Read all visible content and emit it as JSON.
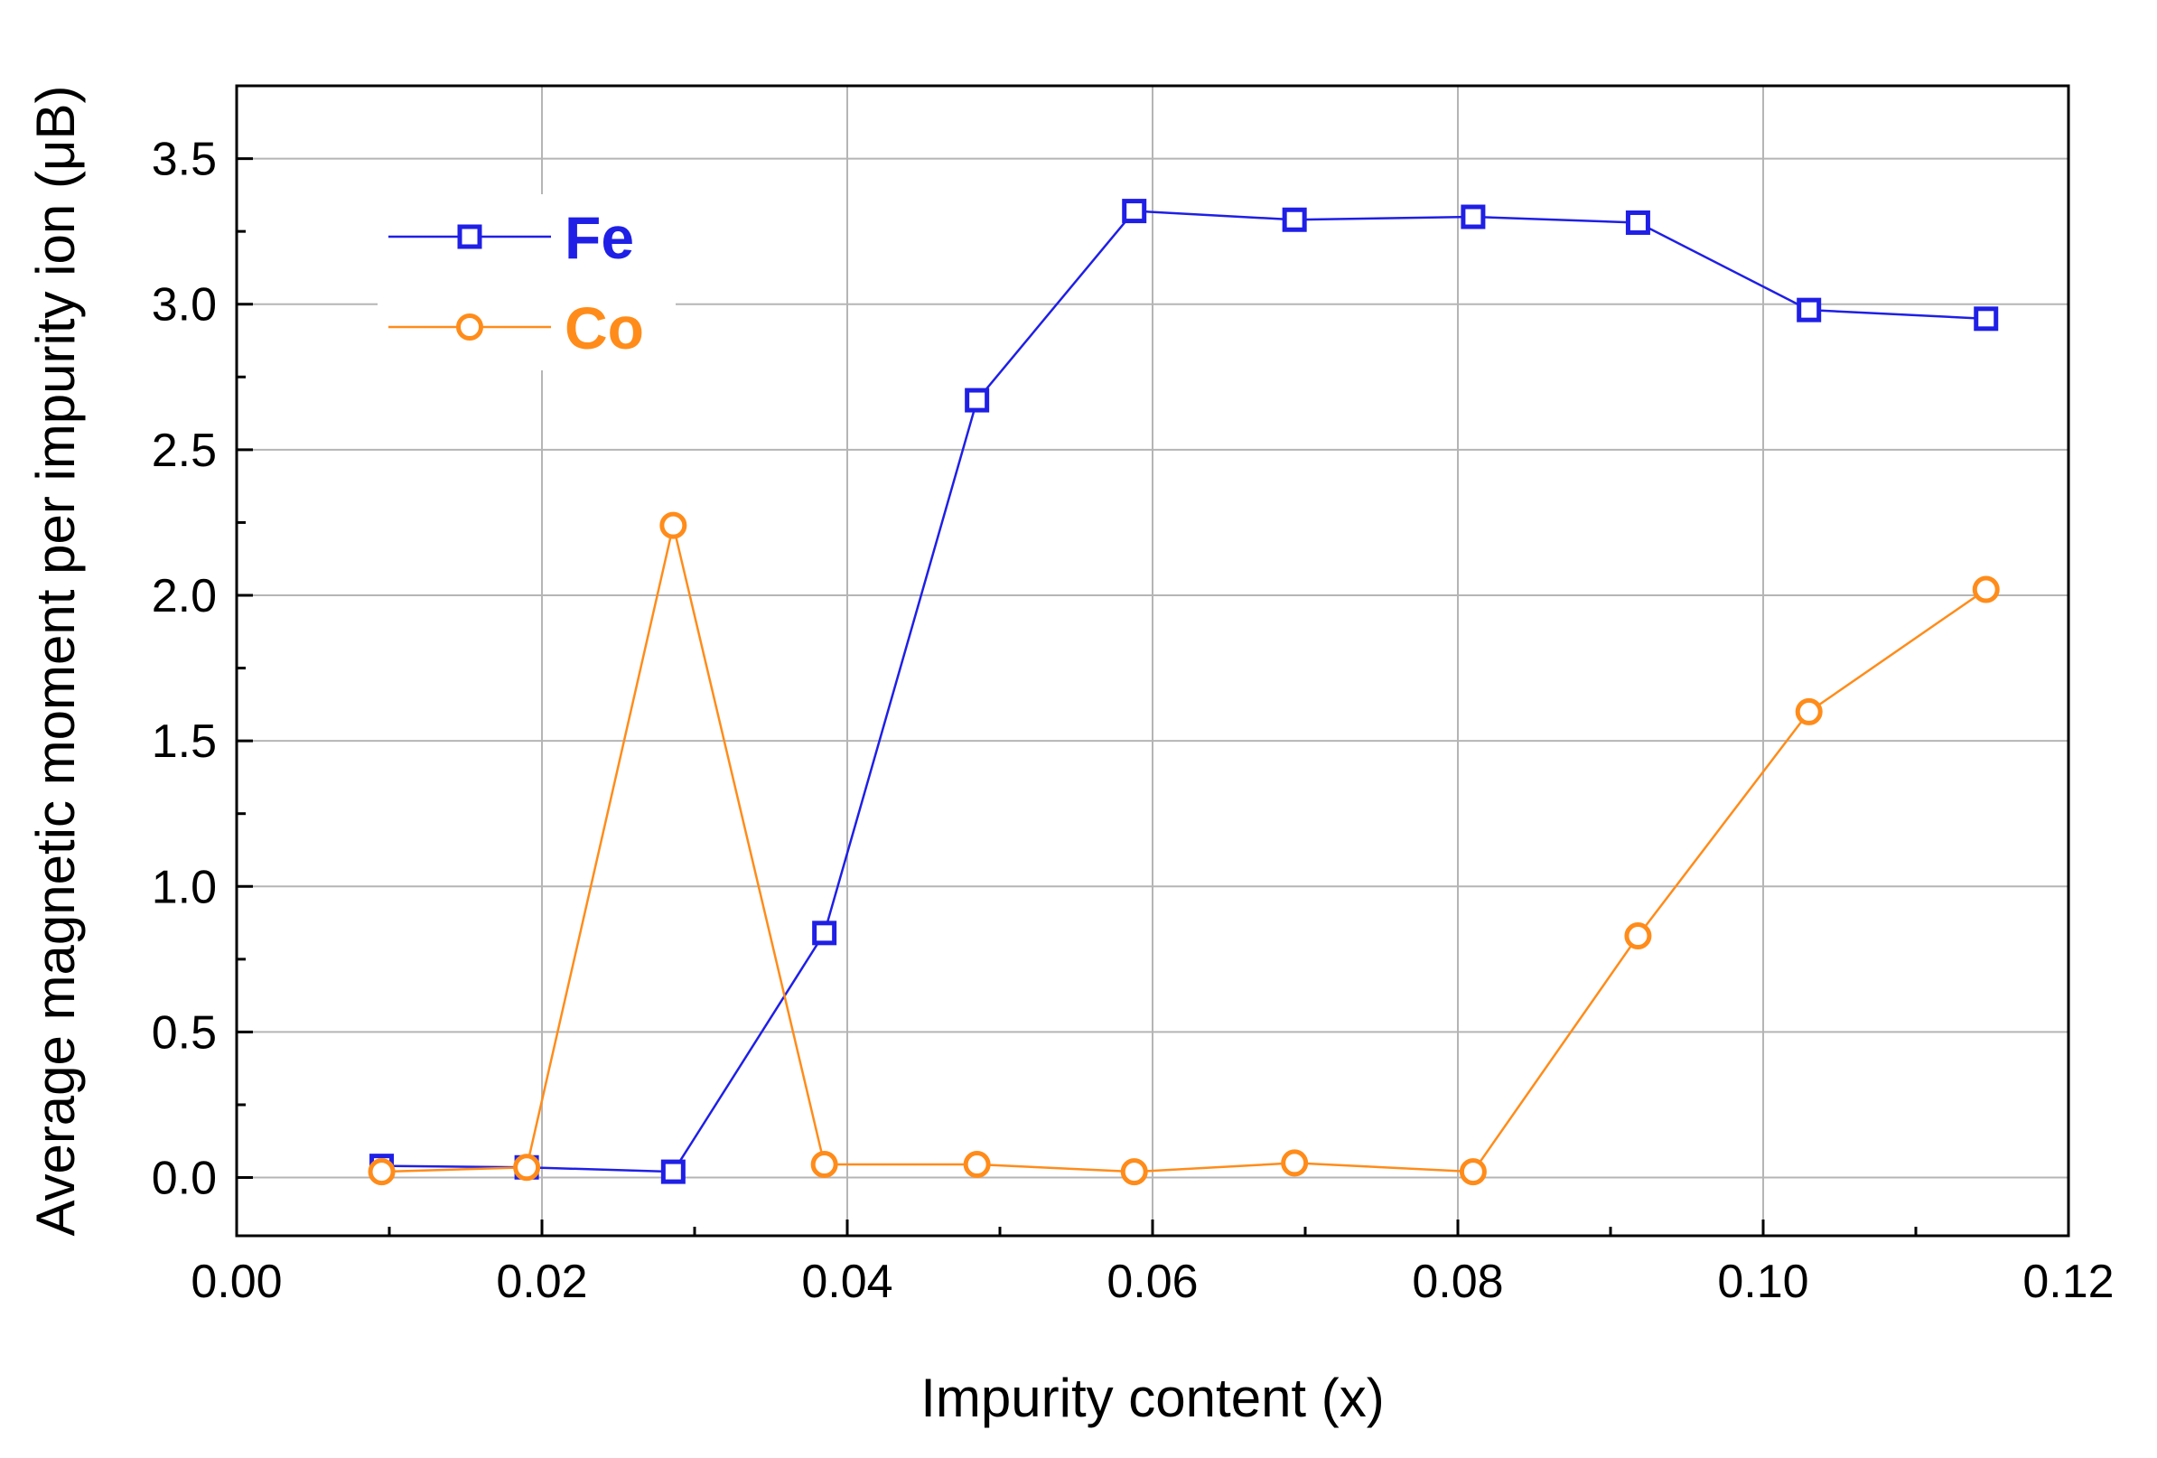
{
  "chart_data": {
    "type": "line",
    "xlabel": "Impurity content (x)",
    "ylabel": "Average magnetic moment per impurity ion (μB)",
    "xlim": [
      0.0,
      0.12
    ],
    "ylim": [
      -0.2,
      3.75
    ],
    "x_ticks": [
      "0.00",
      "0.02",
      "0.04",
      "0.06",
      "0.08",
      "0.10",
      "0.12"
    ],
    "y_ticks": [
      "0.0",
      "0.5",
      "1.0",
      "1.5",
      "2.0",
      "2.5",
      "3.0",
      "3.5"
    ],
    "grid": true,
    "legend_position": "top-left",
    "series": [
      {
        "name": "Fe",
        "color": "#1f1fe6",
        "marker": "square",
        "x": [
          0.0095,
          0.019,
          0.0286,
          0.0385,
          0.0485,
          0.0588,
          0.0693,
          0.081,
          0.0918,
          0.103,
          0.1146
        ],
        "y": [
          0.04,
          0.035,
          0.02,
          0.84,
          2.67,
          3.32,
          3.29,
          3.3,
          3.28,
          2.98,
          2.95
        ]
      },
      {
        "name": "Co",
        "color": "#ff8c1a",
        "marker": "circle",
        "x": [
          0.0095,
          0.019,
          0.0286,
          0.0385,
          0.0485,
          0.0588,
          0.0693,
          0.081,
          0.0918,
          0.103,
          0.1146
        ],
        "y": [
          0.02,
          0.035,
          2.24,
          0.045,
          0.045,
          0.02,
          0.05,
          0.02,
          0.83,
          1.6,
          2.02
        ]
      }
    ]
  }
}
